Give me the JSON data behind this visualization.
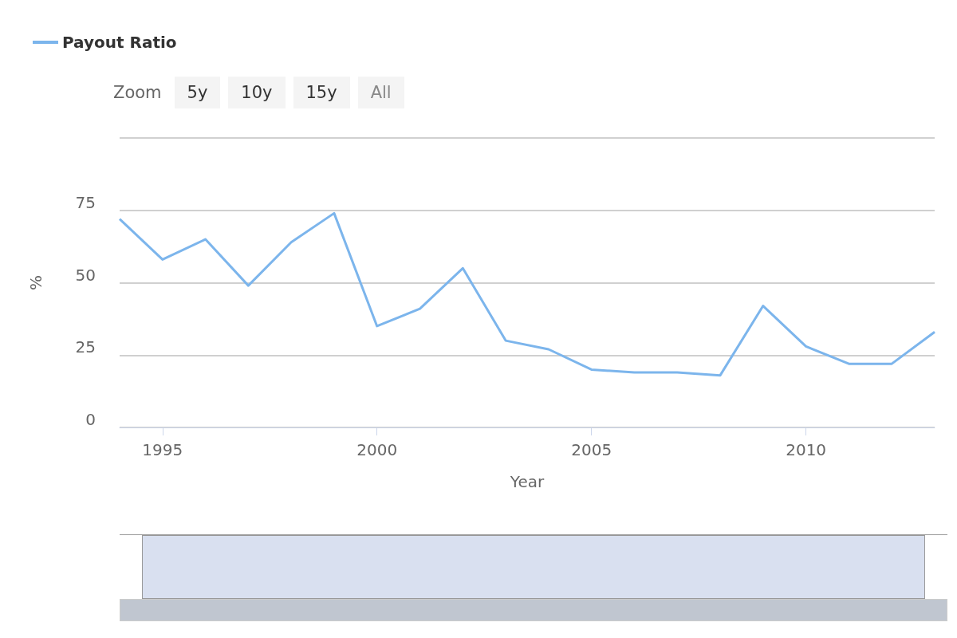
{
  "chart_data": {
    "type": "line",
    "xlabel": "Year",
    "ylabel": "%",
    "annotations": [
      "Zoom",
      "5y",
      "10y",
      "15y",
      "All"
    ],
    "x": [
      1994,
      1995,
      1996,
      1997,
      1998,
      1999,
      2000,
      2001,
      2002,
      2003,
      2004,
      2005,
      2006,
      2007,
      2008,
      2009,
      2010,
      2011,
      2012,
      2013
    ],
    "series": [
      {
        "name": "Payout Ratio",
        "color": "#7cb5ec",
        "values": [
          72,
          58,
          65,
          49,
          64,
          74,
          35,
          41,
          55,
          30,
          27,
          20,
          19,
          19,
          18,
          42,
          28,
          22,
          22,
          33
        ]
      }
    ],
    "xlim": [
      1994,
      2013
    ],
    "xticks": [
      1995,
      2000,
      2005,
      2010
    ],
    "ylim": [
      0,
      100
    ],
    "yticks": [
      0,
      25,
      50,
      75,
      {
        "value": 100,
        "label": null
      }
    ],
    "grid": "y",
    "legend": "top left",
    "marker": "none",
    "line_style": "solid"
  }
}
